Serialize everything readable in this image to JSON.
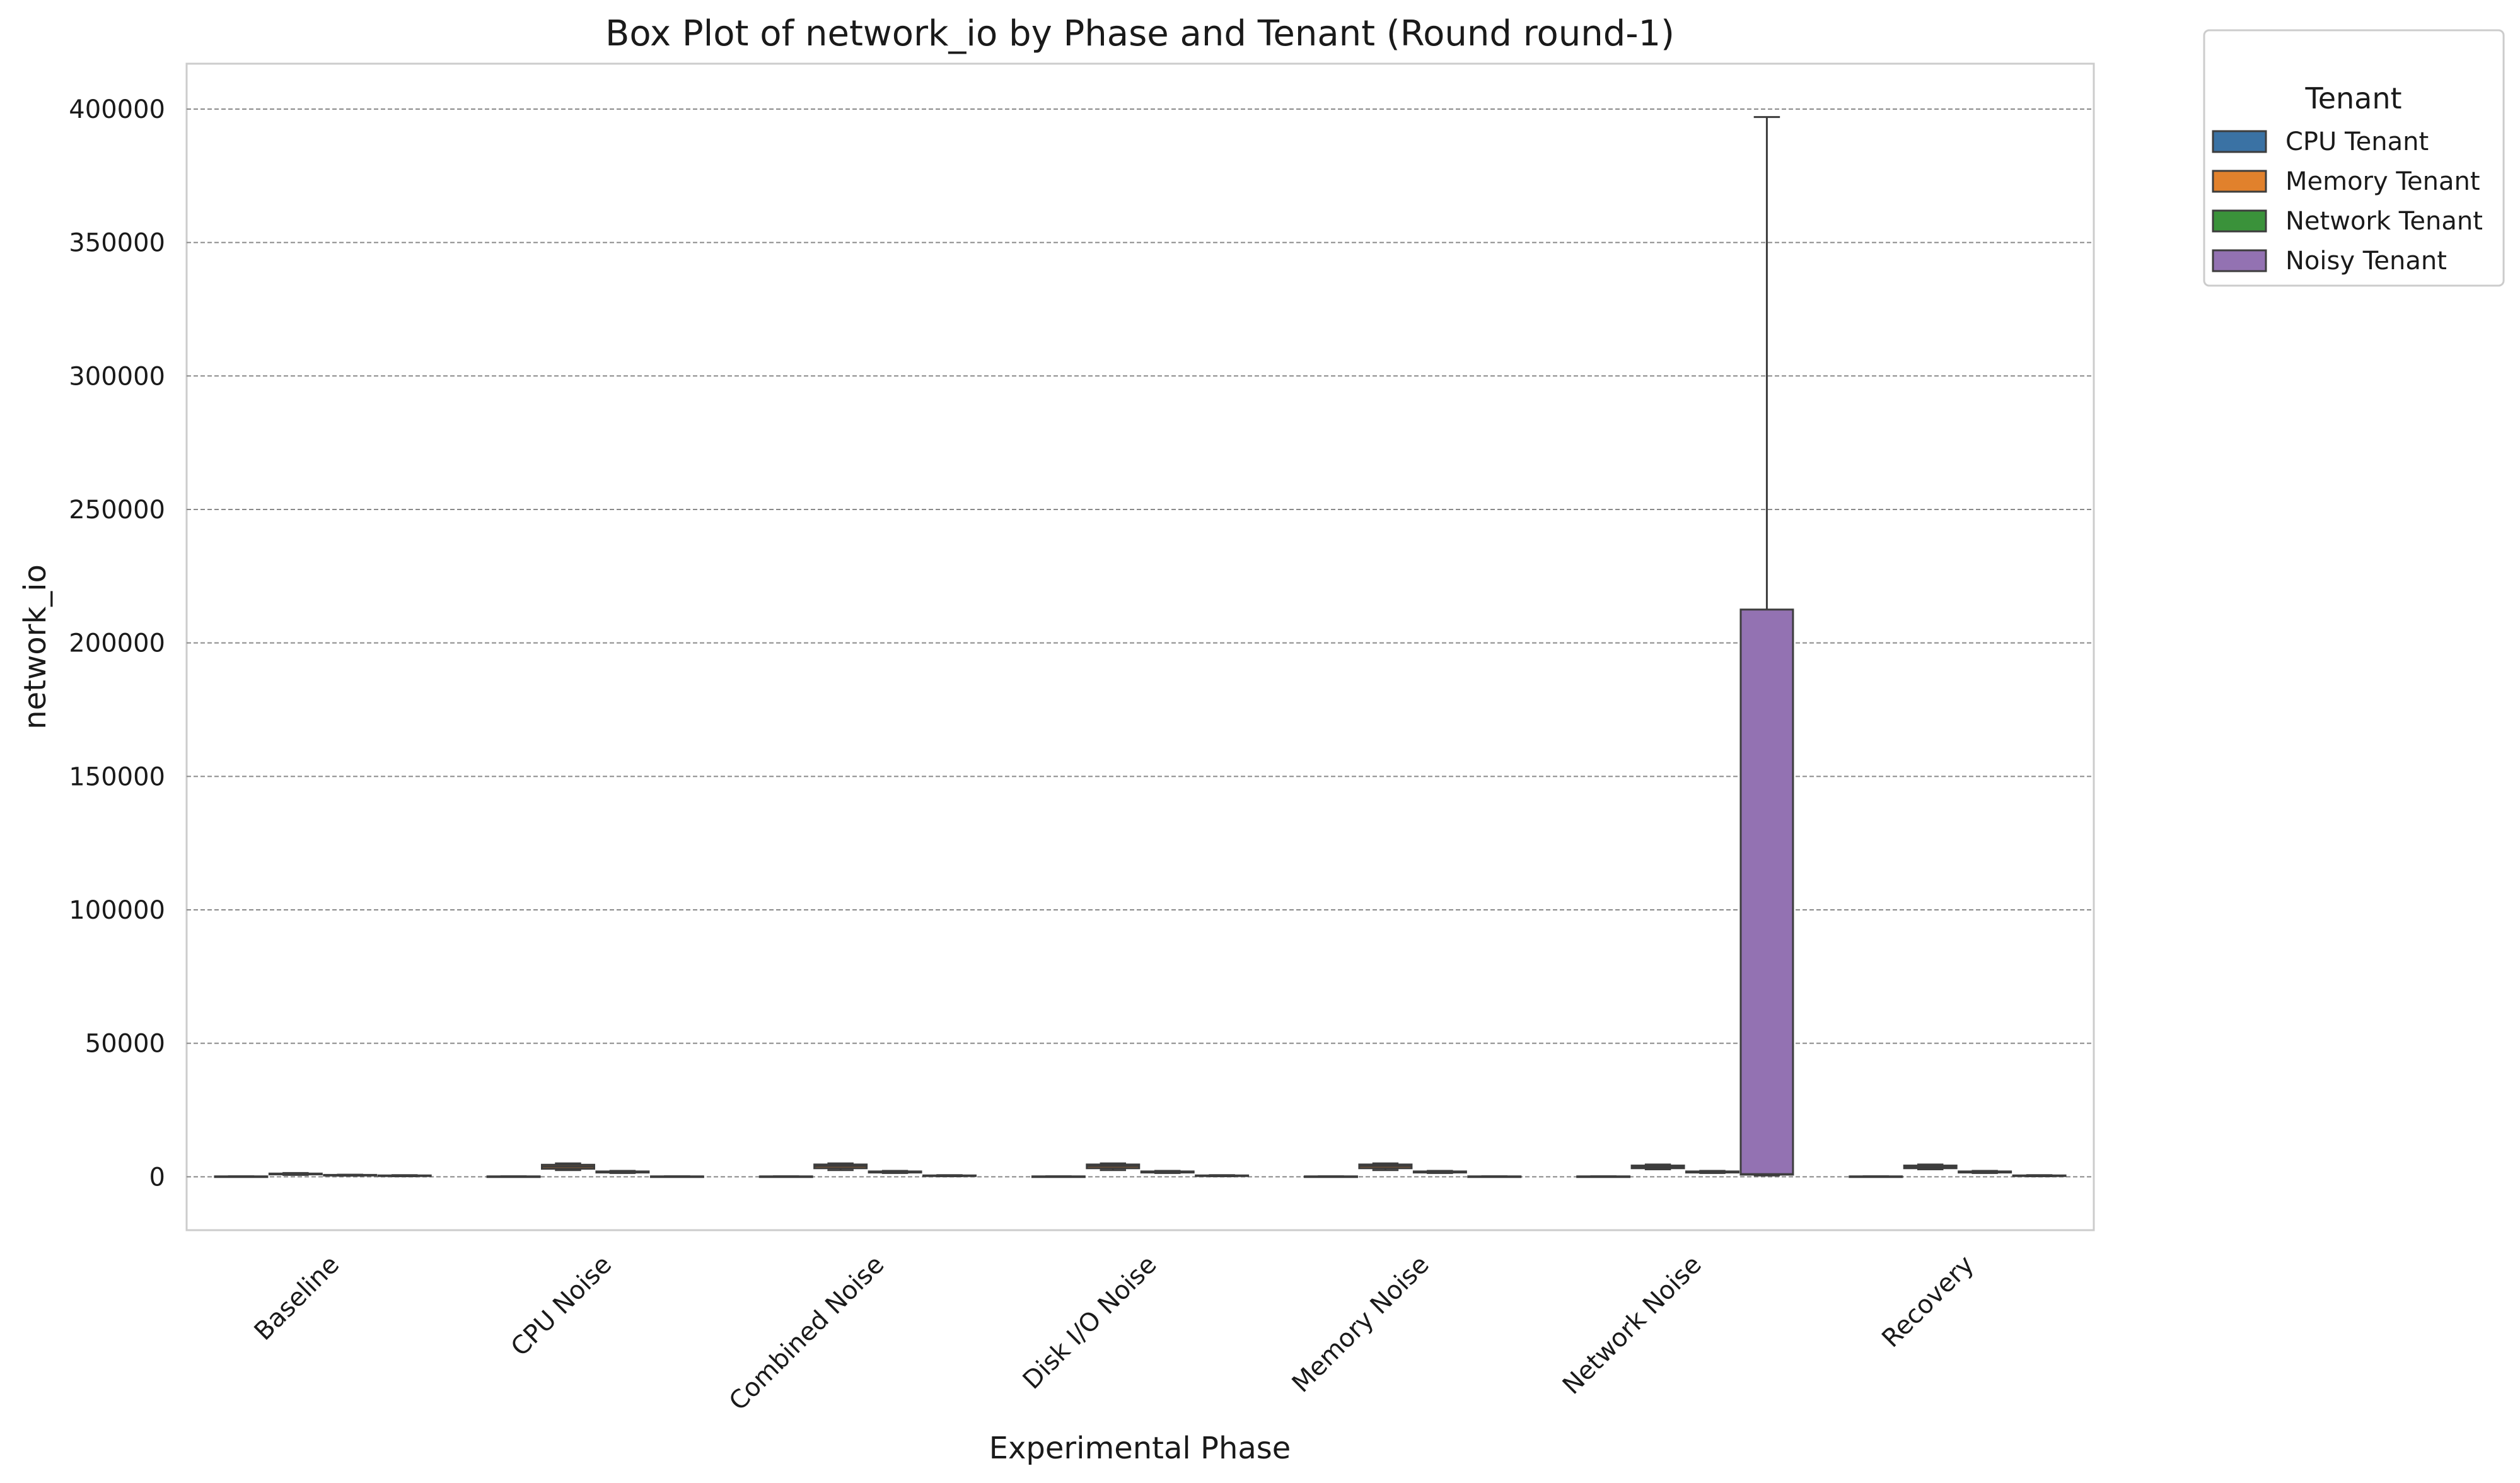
{
  "chart_data": {
    "type": "box",
    "title": "Box Plot of network_io by Phase and Tenant (Round round-1)",
    "xlabel": "Experimental Phase",
    "ylabel": "network_io",
    "ylim": [
      -20000,
      417000
    ],
    "yticks": [
      0,
      50000,
      100000,
      150000,
      200000,
      250000,
      300000,
      350000,
      400000
    ],
    "grid": "horizontal dashed",
    "categories": [
      "Baseline",
      "CPU Noise",
      "Combined Noise",
      "Disk I/O Noise",
      "Memory Noise",
      "Network Noise",
      "Recovery"
    ],
    "legend": {
      "title": "Tenant",
      "placement": "outside-right"
    },
    "series": [
      {
        "name": "CPU Tenant",
        "color": "#3a72a4",
        "boxes": [
          {
            "min": 50,
            "q1": 80,
            "median": 100,
            "q3": 140,
            "max": 200
          },
          {
            "min": 50,
            "q1": 80,
            "median": 100,
            "q3": 140,
            "max": 200
          },
          {
            "min": 50,
            "q1": 80,
            "median": 100,
            "q3": 140,
            "max": 200
          },
          {
            "min": 50,
            "q1": 80,
            "median": 100,
            "q3": 140,
            "max": 200
          },
          {
            "min": 50,
            "q1": 80,
            "median": 100,
            "q3": 140,
            "max": 200
          },
          {
            "min": 50,
            "q1": 80,
            "median": 100,
            "q3": 140,
            "max": 200
          },
          {
            "min": 50,
            "q1": 80,
            "median": 100,
            "q3": 140,
            "max": 200
          }
        ]
      },
      {
        "name": "Memory Tenant",
        "color": "#e1812c",
        "boxes": [
          {
            "min": 700,
            "q1": 900,
            "median": 1000,
            "q3": 1200,
            "max": 1400
          },
          {
            "min": 2500,
            "q1": 3000,
            "median": 3800,
            "q3": 4500,
            "max": 5000
          },
          {
            "min": 2500,
            "q1": 3200,
            "median": 4000,
            "q3": 4600,
            "max": 5000
          },
          {
            "min": 2500,
            "q1": 3200,
            "median": 4000,
            "q3": 4600,
            "max": 5000
          },
          {
            "min": 2500,
            "q1": 3200,
            "median": 4000,
            "q3": 4600,
            "max": 5000
          },
          {
            "min": 2800,
            "q1": 3200,
            "median": 3800,
            "q3": 4200,
            "max": 4600
          },
          {
            "min": 2800,
            "q1": 3200,
            "median": 3800,
            "q3": 4200,
            "max": 4600
          }
        ]
      },
      {
        "name": "Network Tenant",
        "color": "#3a923a",
        "boxes": [
          {
            "min": 400,
            "q1": 500,
            "median": 600,
            "q3": 700,
            "max": 800
          },
          {
            "min": 1400,
            "q1": 1600,
            "median": 1800,
            "q3": 2000,
            "max": 2200
          },
          {
            "min": 1400,
            "q1": 1600,
            "median": 1800,
            "q3": 2000,
            "max": 2200
          },
          {
            "min": 1400,
            "q1": 1600,
            "median": 1800,
            "q3": 2000,
            "max": 2200
          },
          {
            "min": 1400,
            "q1": 1600,
            "median": 1800,
            "q3": 2000,
            "max": 2200
          },
          {
            "min": 1400,
            "q1": 1600,
            "median": 1800,
            "q3": 2000,
            "max": 2200
          },
          {
            "min": 1400,
            "q1": 1600,
            "median": 1800,
            "q3": 2000,
            "max": 2200
          }
        ]
      },
      {
        "name": "Noisy Tenant",
        "color": "#9372b2",
        "boxes": [
          {
            "min": 200,
            "q1": 300,
            "median": 400,
            "q3": 500,
            "max": 600
          },
          {
            "min": 50,
            "q1": 80,
            "median": 100,
            "q3": 140,
            "max": 200
          },
          {
            "min": 200,
            "q1": 300,
            "median": 400,
            "q3": 500,
            "max": 600
          },
          {
            "min": 200,
            "q1": 300,
            "median": 400,
            "q3": 500,
            "max": 600
          },
          {
            "min": 50,
            "q1": 80,
            "median": 100,
            "q3": 140,
            "max": 200
          },
          {
            "min": 500,
            "q1": 800,
            "median": 1000,
            "q3": 212500,
            "max": 397000
          },
          {
            "min": 200,
            "q1": 300,
            "median": 400,
            "q3": 500,
            "max": 600
          }
        ]
      }
    ]
  }
}
